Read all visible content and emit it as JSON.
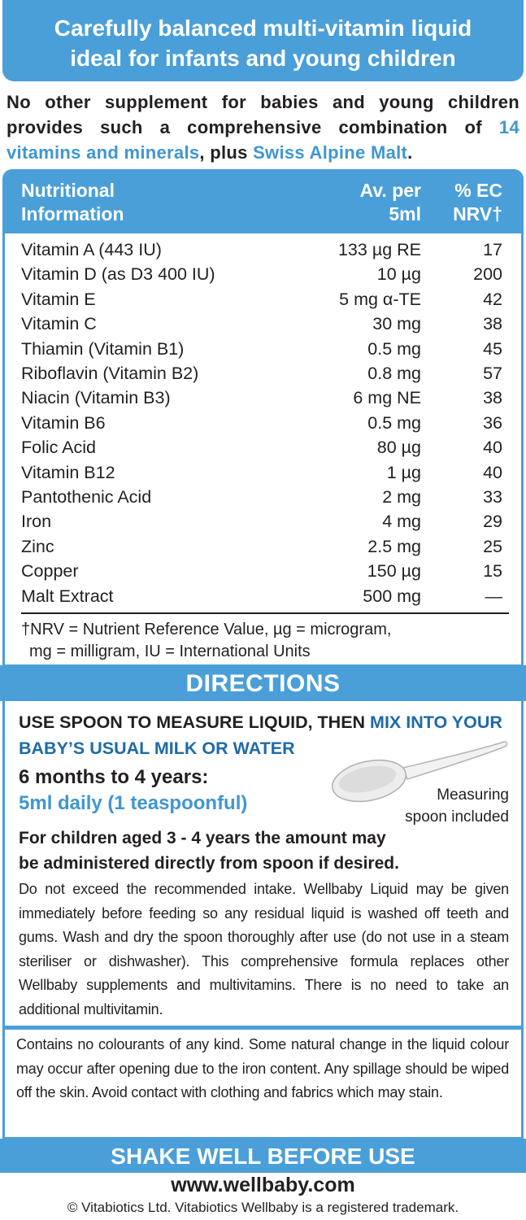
{
  "header": {
    "title_lines": [
      "Carefully balanced multi-vitamin liquid",
      "ideal for infants and young children"
    ]
  },
  "intro": {
    "parts": [
      "No other supplement for babies and young children provides such a comprehensive combination of ",
      "14 vitamins and minerals",
      ", plus ",
      "Swiss Alpine Malt",
      "."
    ]
  },
  "table": {
    "headers": [
      [
        "Nutritional",
        "Information"
      ],
      [
        "Av. per",
        "5ml"
      ],
      [
        "% EC",
        "NRV†"
      ]
    ],
    "rows": [
      [
        "Vitamin A (443 IU)",
        "133 µg RE",
        17
      ],
      [
        "Vitamin D (as D3 400 IU)",
        "10 µg",
        200
      ],
      [
        "Vitamin E",
        "5 mg α-TE",
        42
      ],
      [
        "Vitamin C",
        "30 mg",
        38
      ],
      [
        "Thiamin (Vitamin B1)",
        "0.5 mg",
        45
      ],
      [
        "Riboflavin (Vitamin B2)",
        "0.8 mg",
        57
      ],
      [
        "Niacin (Vitamin B3)",
        "6 mg NE",
        38
      ],
      [
        "Vitamin B6",
        "0.5 mg",
        36
      ],
      [
        "Folic Acid",
        "80 µg",
        40
      ],
      [
        "Vitamin B12",
        "1 µg",
        40
      ],
      [
        "Pantothenic Acid",
        "2 mg",
        33
      ],
      [
        "Iron",
        "4 mg",
        29
      ],
      [
        "Zinc",
        "2.5 mg",
        25
      ],
      [
        "Copper",
        "150 µg",
        15
      ],
      [
        "Malt Extract",
        "500 mg",
        "—"
      ]
    ],
    "footnote_lines": [
      "†NRV = Nutrient Reference Value, µg = microgram,",
      "mg = milligram, IU = International Units"
    ]
  },
  "directions": {
    "title": "DIRECTIONS",
    "instruction_parts": [
      "USE SPOON TO MEASURE LIQUID, THEN ",
      "MIX INTO YOUR BABY’S USUAL MILK OR WATER"
    ],
    "age": "6 months to 4 years:",
    "dose": "5ml daily (1 teaspoonful)",
    "spoon_caption_lines": [
      "Measuring",
      "spoon included"
    ],
    "children_note": "For children aged 3 - 4 years the amount may be administered directly from spoon if desired.",
    "body": "Do not exceed the recommended intake. Wellbaby Liquid may be given immediately before feeding so any residual liquid is washed off teeth and gums. Wash and dry the spoon thoroughly after use (do not use in a steam steriliser or dishwasher). This comprehensive formula replaces other Wellbaby supplements and multivitamins. There is no need to take an additional multivitamin."
  },
  "caution": "Contains no colourants of any kind. Some natural change in the liquid colour may occur after opening due to the iron content. Any spillage should be wiped off the skin. Avoid contact with clothing and fabrics which may stain.",
  "shake": "SHAKE WELL BEFORE USE",
  "website": "www.wellbaby.com",
  "copyright": "© Vitabiotics Ltd. Vitabiotics Wellbaby is a registered trademark."
}
